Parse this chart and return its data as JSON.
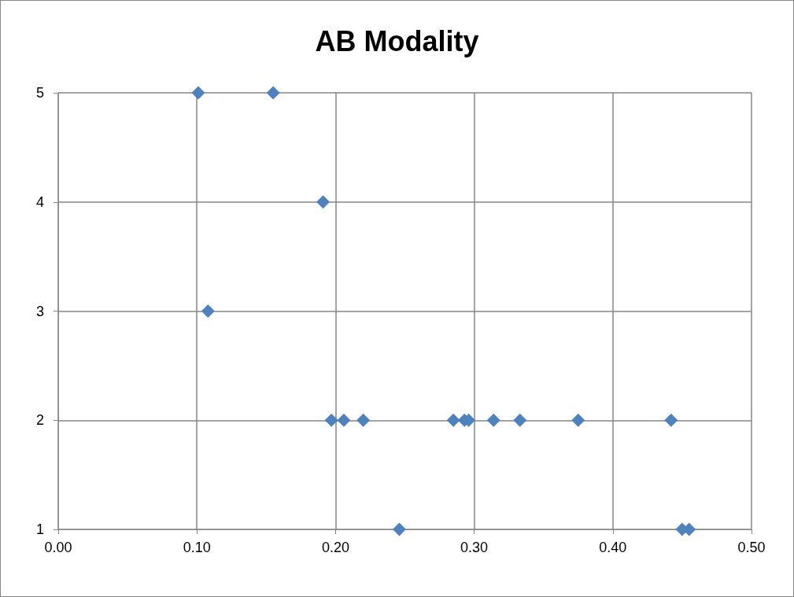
{
  "chart_data": {
    "type": "scatter",
    "title": "AB Modality",
    "x": [
      0.101,
      0.155,
      0.191,
      0.108,
      0.197,
      0.206,
      0.22,
      0.285,
      0.293,
      0.296,
      0.314,
      0.333,
      0.375,
      0.442,
      0.246,
      0.45,
      0.455
    ],
    "values": [
      5,
      5,
      4,
      3,
      2,
      2,
      2,
      2,
      2,
      2,
      2,
      2,
      2,
      2,
      1,
      1,
      1
    ],
    "color": "#4f81bd",
    "marker": "diamond",
    "xlim": [
      0,
      0.5
    ],
    "xticks": [
      {
        "value": 0,
        "label": "0.00"
      },
      {
        "value": 0.1,
        "label": "0.10"
      },
      {
        "value": 0.2,
        "label": "0.20"
      },
      {
        "value": 0.3,
        "label": "0.30"
      },
      {
        "value": 0.4,
        "label": "0.40"
      },
      {
        "value": 0.5,
        "label": "0.50"
      }
    ],
    "ylim": [
      1,
      5
    ],
    "yticks": [
      1,
      2,
      3,
      4,
      5
    ],
    "grid": true
  }
}
